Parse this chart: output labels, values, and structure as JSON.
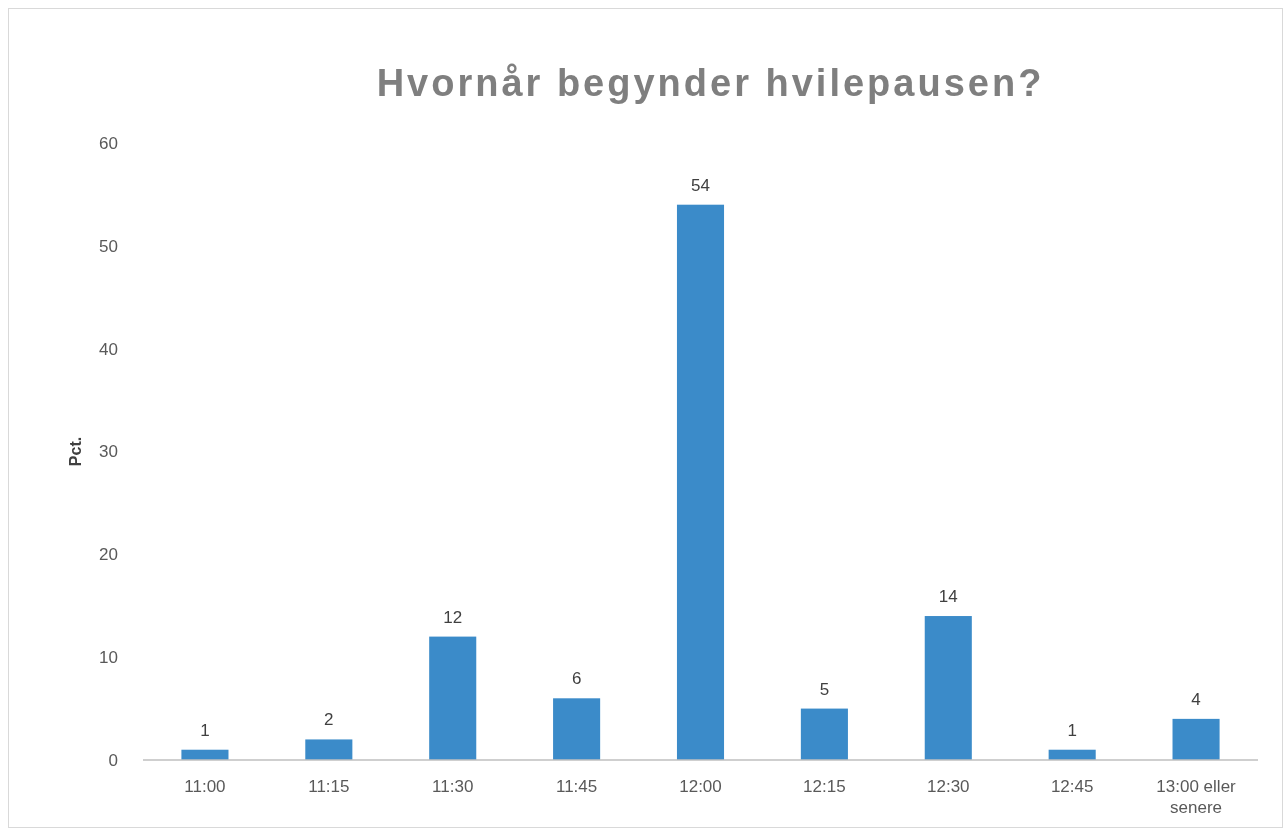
{
  "chart_data": {
    "type": "bar",
    "title": "Hvornår begynder hvilepausen?",
    "ylabel": "Pct.",
    "categories": [
      "11:00",
      "11:15",
      "11:30",
      "11:45",
      "12:00",
      "12:15",
      "12:30",
      "12:45",
      "13:00 eller senere"
    ],
    "values": [
      1,
      2,
      12,
      6,
      54,
      5,
      14,
      1,
      4
    ],
    "color": "#3b8bc9",
    "ylim": [
      0,
      60
    ],
    "yticks": [
      0,
      10,
      20,
      30,
      40,
      50,
      60
    ],
    "grid": false,
    "data_labels": true
  }
}
